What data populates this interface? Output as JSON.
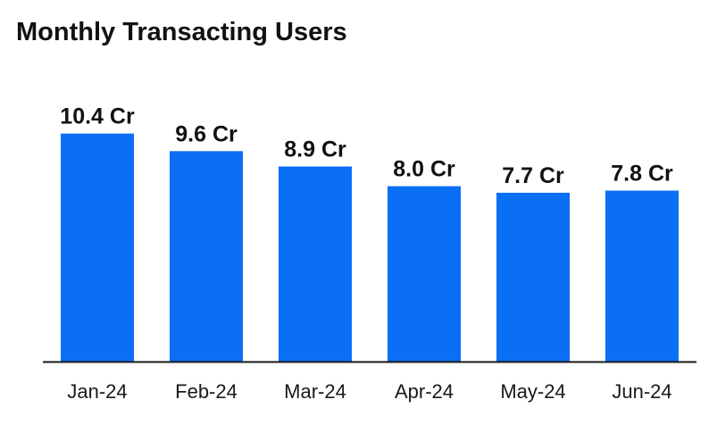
{
  "chart_data": {
    "type": "bar",
    "title": "Monthly Transacting Users",
    "categories": [
      "Jan-24",
      "Feb-24",
      "Mar-24",
      "Apr-24",
      "May-24",
      "Jun-24"
    ],
    "values": [
      10.4,
      9.6,
      8.9,
      8.0,
      7.7,
      7.8
    ],
    "data_labels": [
      "10.4 Cr",
      "9.6 Cr",
      "8.9 Cr",
      "8.0 Cr",
      "7.7 Cr",
      "7.8 Cr"
    ],
    "unit": "Cr",
    "xlabel": "",
    "ylabel": "",
    "ylim": [
      0,
      11.2
    ],
    "grid": false,
    "legend": "none",
    "bar_color": "#0A6FF5",
    "axis_color": "#1a1a1a"
  }
}
